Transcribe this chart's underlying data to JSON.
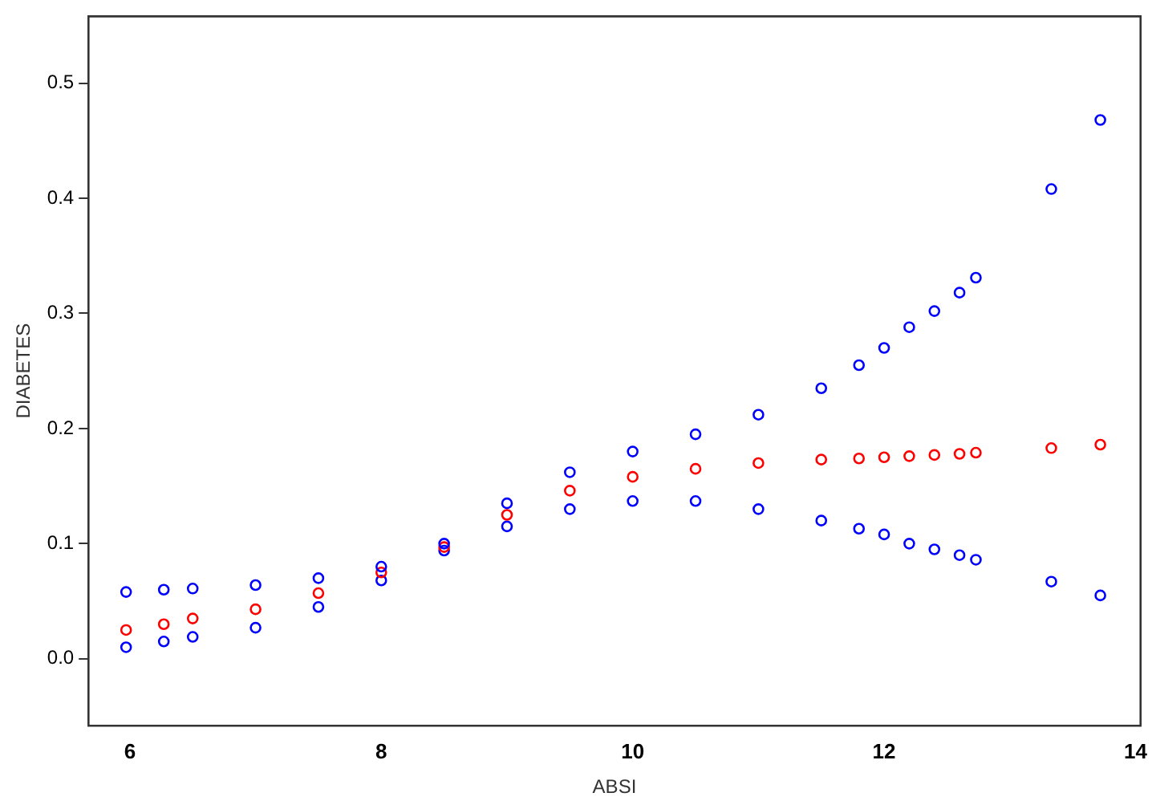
{
  "chart_data": {
    "type": "scatter",
    "xlabel": "ABSI",
    "ylabel": "DIABETES",
    "xlim": [
      5.67,
      14.04
    ],
    "xticks": [
      6,
      8,
      10,
      12,
      14
    ],
    "ylim": [
      -0.058,
      0.558
    ],
    "yticks": [
      {
        "value": 0,
        "label": "0.0"
      },
      0.1,
      0.2,
      0.3,
      0.4,
      0.5
    ],
    "grid": false,
    "legend": false,
    "marker": "circle",
    "x": [
      5.97,
      6.27,
      6.5,
      7,
      7.5,
      8,
      8.5,
      9,
      9.5,
      10,
      10.5,
      11,
      11.5,
      11.8,
      12,
      12.2,
      12.4,
      12.6,
      12.73,
      13.33,
      13.72
    ],
    "series": [
      {
        "color": "#0000ff",
        "values": [
          0.058,
          0.06,
          0.061,
          0.064,
          0.07,
          0.08,
          0.1,
          0.135,
          0.162,
          0.18,
          0.195,
          0.212,
          0.235,
          0.255,
          0.27,
          0.288,
          0.302,
          0.318,
          0.331,
          0.408,
          0.468
        ]
      },
      {
        "color": "#ff0000",
        "values": [
          0.025,
          0.03,
          0.035,
          0.043,
          0.057,
          0.075,
          0.097,
          0.125,
          0.146,
          0.158,
          0.165,
          0.17,
          0.173,
          0.174,
          0.175,
          0.176,
          0.177,
          0.178,
          0.179,
          0.183,
          0.186
        ]
      },
      {
        "color": "#0000ff",
        "values": [
          0.01,
          0.015,
          0.019,
          0.027,
          0.045,
          0.068,
          0.094,
          0.115,
          0.13,
          0.137,
          0.137,
          0.13,
          0.12,
          0.113,
          0.108,
          0.1,
          0.095,
          0.09,
          0.086,
          0.067,
          0.055
        ]
      }
    ]
  }
}
